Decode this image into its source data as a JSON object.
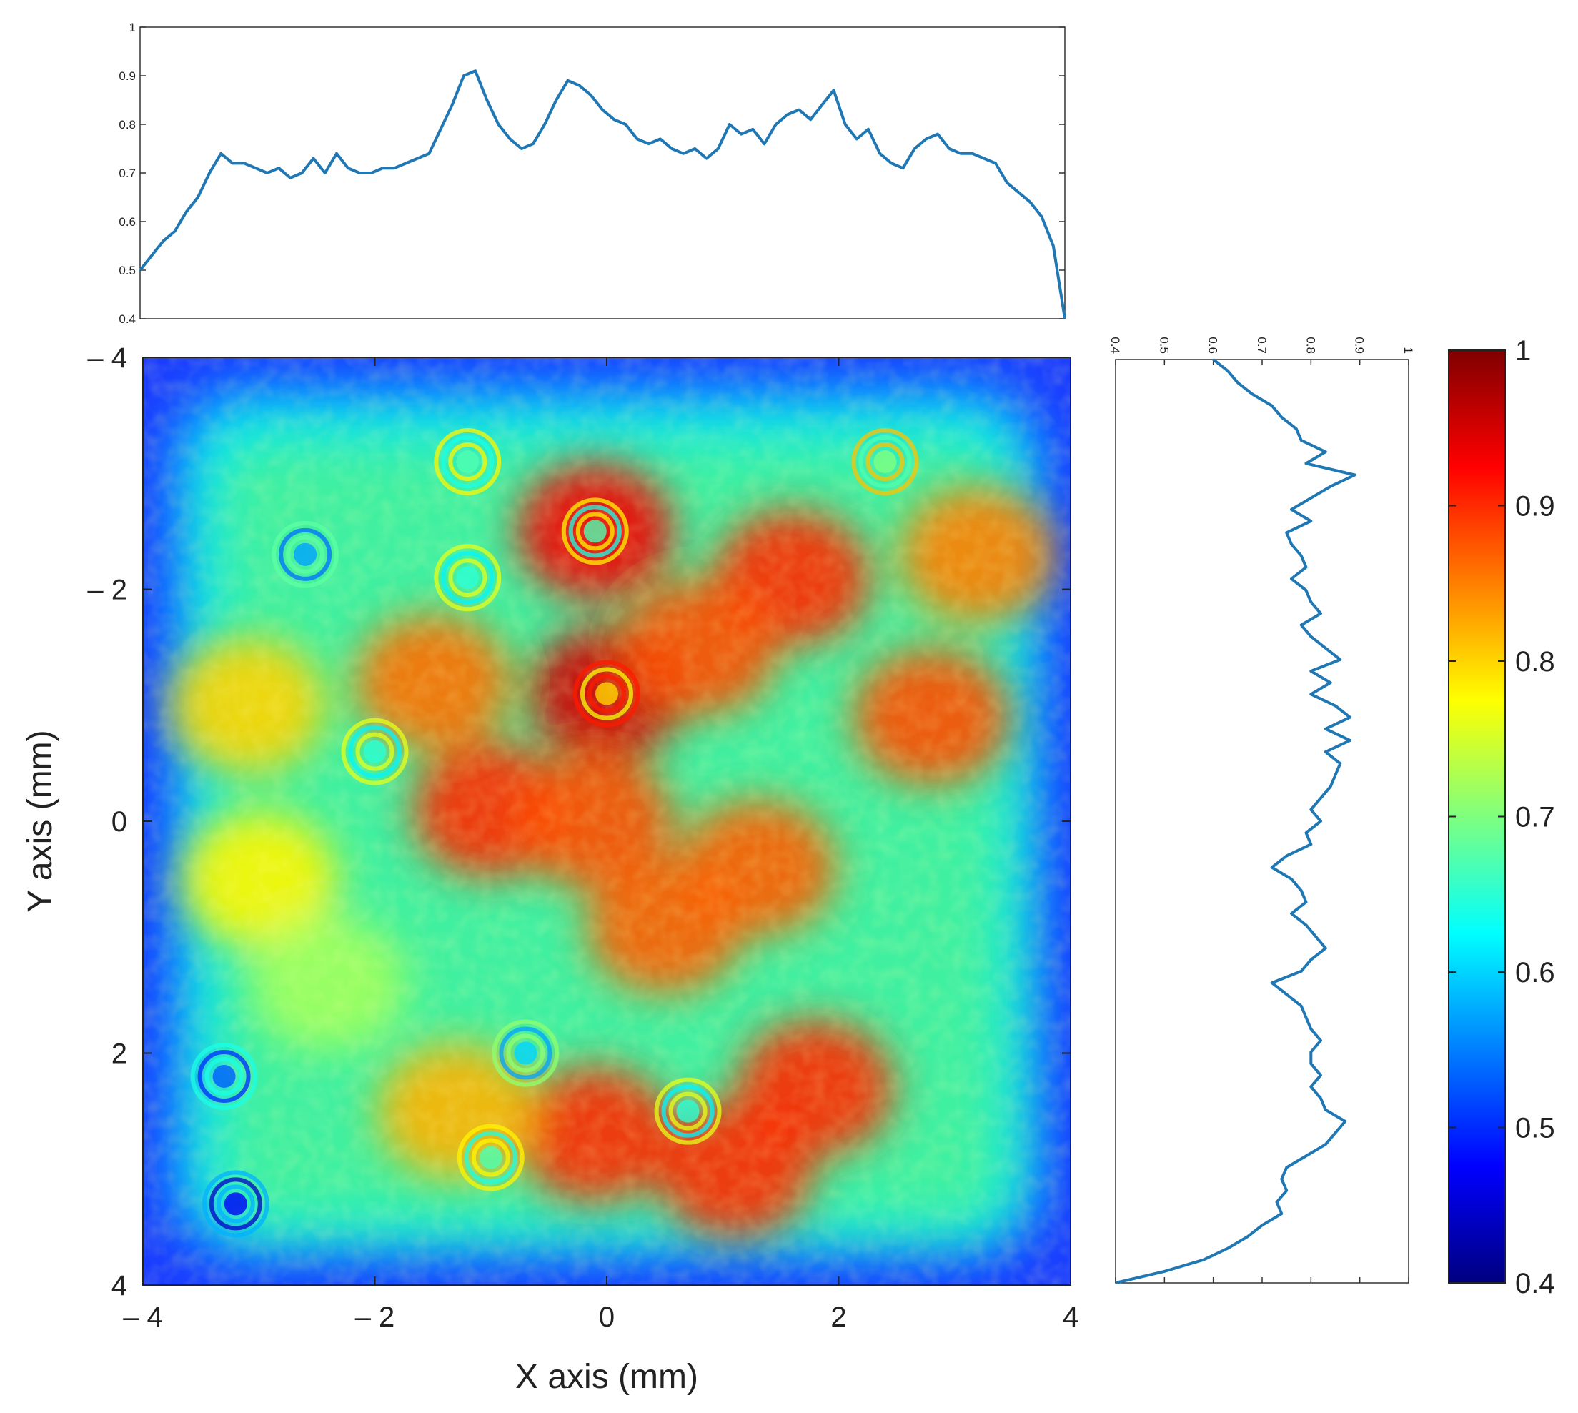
{
  "chart_data": [
    {
      "type": "heatmap",
      "name": "intensity-map",
      "xlabel": "X axis (mm)",
      "ylabel": "Y axis (mm)",
      "xlim": [
        -4,
        4
      ],
      "ylim": [
        -4,
        4
      ],
      "y_direction": "top-to-bottom",
      "x_ticks": [
        "– 4",
        "– 2",
        "0",
        "2",
        "4"
      ],
      "x_tick_values": [
        -4,
        -2,
        0,
        2,
        4
      ],
      "y_ticks": [
        "– 4",
        "– 2",
        "0",
        "2",
        "4"
      ],
      "y_tick_values": [
        -4,
        -2,
        0,
        2,
        4
      ],
      "colormap": "jet",
      "colormap_stops": [
        "#00007f",
        "#0000ff",
        "#007fff",
        "#00ffff",
        "#7fff7f",
        "#ffff00",
        "#ff7f00",
        "#ff0000",
        "#7f0000"
      ],
      "value_range": [
        0.4,
        1
      ],
      "hotspots": [
        {
          "x": -0.1,
          "y": -2.5,
          "v": 0.93
        },
        {
          "x": 0.0,
          "y": -1.1,
          "v": 0.95
        },
        {
          "x": 1.6,
          "y": -2.1,
          "v": 0.9
        },
        {
          "x": 0.8,
          "y": -1.5,
          "v": 0.88
        },
        {
          "x": -1.5,
          "y": -1.2,
          "v": 0.86
        },
        {
          "x": -1.0,
          "y": -0.1,
          "v": 0.9
        },
        {
          "x": -0.1,
          "y": 0.0,
          "v": 0.88
        },
        {
          "x": 1.3,
          "y": 0.4,
          "v": 0.87
        },
        {
          "x": 2.8,
          "y": -0.9,
          "v": 0.88
        },
        {
          "x": 3.2,
          "y": -2.3,
          "v": 0.85
        },
        {
          "x": 0.5,
          "y": 0.9,
          "v": 0.87
        },
        {
          "x": -0.1,
          "y": 2.7,
          "v": 0.9
        },
        {
          "x": 1.1,
          "y": 3.0,
          "v": 0.9
        },
        {
          "x": 1.8,
          "y": 2.3,
          "v": 0.9
        },
        {
          "x": -3.1,
          "y": -1.0,
          "v": 0.8
        },
        {
          "x": -3.0,
          "y": 0.5,
          "v": 0.78
        },
        {
          "x": -2.4,
          "y": 1.4,
          "v": 0.72
        },
        {
          "x": -1.3,
          "y": 2.5,
          "v": 0.82
        }
      ],
      "rings": [
        {
          "x": -2.6,
          "y": -2.3,
          "v": 0.62
        },
        {
          "x": -0.1,
          "y": -2.5,
          "v": 0.72
        },
        {
          "x": 0.0,
          "y": -1.1,
          "v": 0.85
        },
        {
          "x": -1.2,
          "y": -2.1,
          "v": 0.7
        },
        {
          "x": -1.2,
          "y": -3.1,
          "v": 0.72
        },
        {
          "x": 2.4,
          "y": -3.1,
          "v": 0.75
        },
        {
          "x": -1.0,
          "y": 2.9,
          "v": 0.72
        },
        {
          "x": -0.7,
          "y": 2.0,
          "v": 0.65
        },
        {
          "x": 0.7,
          "y": 2.5,
          "v": 0.7
        },
        {
          "x": -3.2,
          "y": 3.3,
          "v": 0.52
        },
        {
          "x": -2.0,
          "y": -0.6,
          "v": 0.7
        },
        {
          "x": -3.3,
          "y": 2.2,
          "v": 0.58
        }
      ]
    },
    {
      "type": "line",
      "name": "x-profile",
      "x": [
        -4.0,
        -3.9,
        -3.8,
        -3.7,
        -3.6,
        -3.5,
        -3.4,
        -3.3,
        -3.2,
        -3.1,
        -3.0,
        -2.9,
        -2.8,
        -2.7,
        -2.6,
        -2.5,
        -2.4,
        -2.3,
        -2.2,
        -2.1,
        -2.0,
        -1.9,
        -1.8,
        -1.7,
        -1.6,
        -1.5,
        -1.4,
        -1.3,
        -1.2,
        -1.1,
        -1.0,
        -0.9,
        -0.8,
        -0.7,
        -0.6,
        -0.5,
        -0.4,
        -0.3,
        -0.2,
        -0.1,
        0.0,
        0.1,
        0.2,
        0.3,
        0.4,
        0.5,
        0.6,
        0.7,
        0.8,
        0.9,
        1.0,
        1.1,
        1.2,
        1.3,
        1.4,
        1.5,
        1.6,
        1.7,
        1.8,
        1.9,
        2.0,
        2.1,
        2.2,
        2.3,
        2.4,
        2.5,
        2.6,
        2.7,
        2.8,
        2.9,
        3.0,
        3.1,
        3.2,
        3.3,
        3.4,
        3.5,
        3.6,
        3.7,
        3.8,
        3.9,
        4.0
      ],
      "values": [
        0.5,
        0.53,
        0.56,
        0.58,
        0.62,
        0.65,
        0.7,
        0.74,
        0.72,
        0.72,
        0.71,
        0.7,
        0.71,
        0.69,
        0.7,
        0.73,
        0.7,
        0.74,
        0.71,
        0.7,
        0.7,
        0.71,
        0.71,
        0.72,
        0.73,
        0.74,
        0.79,
        0.84,
        0.9,
        0.91,
        0.85,
        0.8,
        0.77,
        0.75,
        0.76,
        0.8,
        0.85,
        0.89,
        0.88,
        0.86,
        0.83,
        0.81,
        0.8,
        0.77,
        0.76,
        0.77,
        0.75,
        0.74,
        0.75,
        0.73,
        0.75,
        0.8,
        0.78,
        0.79,
        0.76,
        0.8,
        0.82,
        0.83,
        0.81,
        0.84,
        0.87,
        0.8,
        0.77,
        0.79,
        0.74,
        0.72,
        0.71,
        0.75,
        0.77,
        0.78,
        0.75,
        0.74,
        0.74,
        0.73,
        0.72,
        0.68,
        0.66,
        0.64,
        0.61,
        0.55,
        0.4
      ],
      "xlim": [
        -4,
        4
      ],
      "ylim": [
        0.4,
        1
      ],
      "y_ticks": [
        "0.4",
        "0.5",
        "0.6",
        "0.7",
        "0.8",
        "0.9",
        "1"
      ],
      "y_tick_values": [
        0.4,
        0.5,
        0.6,
        0.7,
        0.8,
        0.9,
        1
      ],
      "color": "#1f77b4"
    },
    {
      "type": "line",
      "name": "y-profile",
      "orientation": "vertical",
      "y": [
        -4.0,
        -3.9,
        -3.8,
        -3.7,
        -3.6,
        -3.5,
        -3.4,
        -3.3,
        -3.2,
        -3.1,
        -3.0,
        -2.9,
        -2.8,
        -2.7,
        -2.6,
        -2.5,
        -2.4,
        -2.3,
        -2.2,
        -2.1,
        -2.0,
        -1.9,
        -1.8,
        -1.7,
        -1.6,
        -1.5,
        -1.4,
        -1.3,
        -1.2,
        -1.1,
        -1.0,
        -0.9,
        -0.8,
        -0.7,
        -0.6,
        -0.5,
        -0.4,
        -0.3,
        -0.2,
        -0.1,
        0.0,
        0.1,
        0.2,
        0.3,
        0.4,
        0.5,
        0.6,
        0.7,
        0.8,
        0.9,
        1.0,
        1.1,
        1.2,
        1.3,
        1.4,
        1.5,
        1.6,
        1.7,
        1.8,
        1.9,
        2.0,
        2.1,
        2.2,
        2.3,
        2.4,
        2.5,
        2.6,
        2.7,
        2.8,
        2.9,
        3.0,
        3.1,
        3.2,
        3.3,
        3.4,
        3.5,
        3.6,
        3.7,
        3.8,
        3.9,
        4.0
      ],
      "values": [
        0.6,
        0.63,
        0.65,
        0.68,
        0.72,
        0.74,
        0.77,
        0.78,
        0.83,
        0.79,
        0.89,
        0.84,
        0.8,
        0.76,
        0.8,
        0.75,
        0.76,
        0.78,
        0.79,
        0.76,
        0.79,
        0.8,
        0.82,
        0.78,
        0.8,
        0.83,
        0.86,
        0.8,
        0.84,
        0.8,
        0.85,
        0.88,
        0.83,
        0.88,
        0.83,
        0.86,
        0.85,
        0.84,
        0.82,
        0.8,
        0.82,
        0.79,
        0.8,
        0.75,
        0.72,
        0.76,
        0.78,
        0.79,
        0.76,
        0.79,
        0.81,
        0.83,
        0.8,
        0.78,
        0.72,
        0.75,
        0.78,
        0.79,
        0.8,
        0.82,
        0.8,
        0.8,
        0.82,
        0.8,
        0.82,
        0.83,
        0.87,
        0.85,
        0.83,
        0.79,
        0.75,
        0.74,
        0.75,
        0.73,
        0.74,
        0.7,
        0.67,
        0.63,
        0.58,
        0.5,
        0.4
      ],
      "ylim": [
        -4,
        4
      ],
      "xlim": [
        0.4,
        1
      ],
      "x_ticks": [
        "0.4",
        "0.5",
        "0.6",
        "0.7",
        "0.8",
        "0.9",
        "1"
      ],
      "x_tick_values": [
        0.4,
        0.5,
        0.6,
        0.7,
        0.8,
        0.9,
        1
      ],
      "color": "#1f77b4"
    },
    {
      "type": "colorbar",
      "name": "colorbar",
      "range": [
        0.4,
        1
      ],
      "ticks": [
        "0.4",
        "0.5",
        "0.6",
        "0.7",
        "0.8",
        "0.9",
        "1"
      ],
      "tick_values": [
        0.4,
        0.5,
        0.6,
        0.7,
        0.8,
        0.9,
        1
      ]
    }
  ]
}
